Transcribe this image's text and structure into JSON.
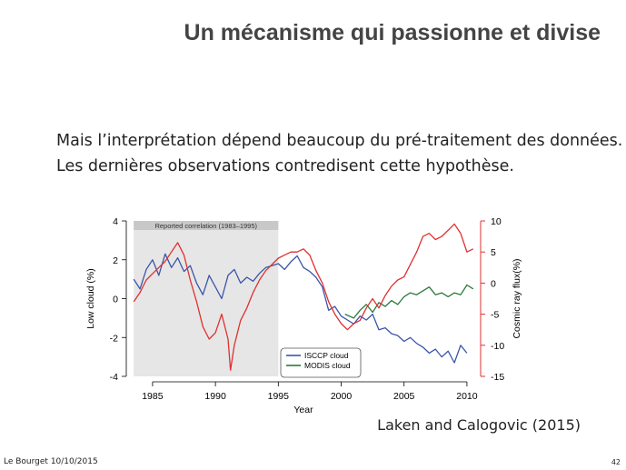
{
  "slide": {
    "title": "Un mécanisme qui passionne et divise",
    "lines": [
      "Mais l’interprétation dépend beaucoup du pré-traitement des données.",
      "Les dernières observations contredisent cette hypothèse."
    ],
    "citation": "Laken and Calogovic (2015)",
    "footer_left": "Le Bourget 10/10/2015",
    "page_number": "42"
  },
  "colors": {
    "isccp": "#3b56a8",
    "modis": "#2a7a3a",
    "cosmic": "#e03030",
    "shade": "#e6e6e6",
    "shade_label_bg": "#c8c8c8"
  },
  "chart_data": {
    "type": "line",
    "xlabel": "Year",
    "ylabel": "Low cloud (%)",
    "y2label": "Cosmic ray flux(%)",
    "xlim": [
      1983.2,
      2010.8
    ],
    "ylim": [
      -4,
      4
    ],
    "y2lim": [
      -15,
      10
    ],
    "xticks": [
      1985,
      1990,
      1995,
      2000,
      2005,
      2010
    ],
    "yticks": [
      -4,
      -2,
      0,
      2,
      4
    ],
    "y2ticks": [
      -15,
      -10,
      -5,
      0,
      5,
      10
    ],
    "grid": false,
    "legend_position": "bottom-center",
    "shaded_region": {
      "x": [
        1983.5,
        1995
      ],
      "label": "Reported correlation (1983–1995)"
    },
    "series": [
      {
        "name": "ISCCP cloud",
        "axis": "left",
        "x": [
          1983.5,
          1984.0,
          1984.5,
          1985.0,
          1985.5,
          1986.0,
          1986.5,
          1987.0,
          1987.5,
          1988.0,
          1988.5,
          1989.0,
          1989.5,
          1990.0,
          1990.5,
          1991.0,
          1991.5,
          1992.0,
          1992.5,
          1993.0,
          1993.5,
          1994.0,
          1994.5,
          1995.0,
          1995.5,
          1996.0,
          1996.5,
          1997.0,
          1997.5,
          1998.0,
          1998.5,
          1999.0,
          1999.5,
          2000.0,
          2000.5,
          2001.0,
          2001.5,
          2002.0,
          2002.5,
          2003.0,
          2003.5,
          2004.0,
          2004.5,
          2005.0,
          2005.5,
          2006.0,
          2006.5,
          2007.0,
          2007.5,
          2008.0,
          2008.5,
          2009.0,
          2009.5,
          2010.0
        ],
        "y": [
          1.0,
          0.5,
          1.5,
          2.0,
          1.2,
          2.3,
          1.6,
          2.1,
          1.4,
          1.7,
          0.8,
          0.2,
          1.2,
          0.6,
          0.0,
          1.2,
          1.5,
          0.8,
          1.1,
          0.9,
          1.3,
          1.6,
          1.7,
          1.8,
          1.5,
          1.9,
          2.2,
          1.6,
          1.4,
          1.1,
          0.6,
          -0.6,
          -0.4,
          -0.9,
          -1.1,
          -1.3,
          -0.9,
          -1.1,
          -0.8,
          -1.6,
          -1.5,
          -1.8,
          -1.9,
          -2.2,
          -2.0,
          -2.3,
          -2.5,
          -2.8,
          -2.6,
          -3.0,
          -2.7,
          -3.3,
          -2.4,
          -2.8
        ]
      },
      {
        "name": "MODIS cloud",
        "axis": "left",
        "x": [
          2000.3,
          2001.0,
          2001.5,
          2002.0,
          2002.5,
          2003.0,
          2003.5,
          2004.0,
          2004.5,
          2005.0,
          2005.5,
          2006.0,
          2006.5,
          2007.0,
          2007.5,
          2008.0,
          2008.5,
          2009.0,
          2009.5,
          2010.0,
          2010.5
        ],
        "y": [
          -0.8,
          -1.0,
          -0.6,
          -0.3,
          -0.7,
          -0.2,
          -0.4,
          -0.1,
          -0.3,
          0.1,
          0.3,
          0.2,
          0.4,
          0.6,
          0.2,
          0.3,
          0.1,
          0.3,
          0.2,
          0.7,
          0.5
        ]
      },
      {
        "name": "",
        "axis": "right",
        "x": [
          1983.5,
          1984.0,
          1984.5,
          1985.0,
          1985.5,
          1986.0,
          1986.5,
          1987.0,
          1987.5,
          1988.0,
          1988.5,
          1989.0,
          1989.5,
          1990.0,
          1990.5,
          1991.0,
          1991.2,
          1991.5,
          1992.0,
          1992.5,
          1993.0,
          1993.5,
          1994.0,
          1994.5,
          1995.0,
          1995.5,
          1996.0,
          1996.5,
          1997.0,
          1997.5,
          1998.0,
          1998.5,
          1999.0,
          1999.5,
          2000.0,
          2000.5,
          2001.0,
          2001.5,
          2002.0,
          2002.5,
          2003.0,
          2003.5,
          2004.0,
          2004.5,
          2005.0,
          2005.5,
          2006.0,
          2006.5,
          2007.0,
          2007.5,
          2008.0,
          2008.5,
          2009.0,
          2009.5,
          2010.0,
          2010.5
        ],
        "y": [
          -3.0,
          -1.5,
          0.5,
          1.5,
          2.5,
          3.5,
          5.0,
          6.5,
          4.5,
          0.5,
          -3.0,
          -7.0,
          -9.0,
          -8.0,
          -5.0,
          -9.0,
          -14.0,
          -10.0,
          -6.0,
          -4.0,
          -1.5,
          0.5,
          2.0,
          3.0,
          4.0,
          4.5,
          5.0,
          5.0,
          5.5,
          4.5,
          2.0,
          0.0,
          -3.0,
          -5.0,
          -6.5,
          -7.5,
          -6.5,
          -6.0,
          -4.0,
          -2.5,
          -4.0,
          -2.0,
          -0.5,
          0.5,
          1.0,
          3.0,
          5.0,
          7.5,
          8.0,
          7.0,
          7.5,
          8.5,
          9.5,
          8.0,
          5.0,
          5.5
        ]
      }
    ]
  }
}
